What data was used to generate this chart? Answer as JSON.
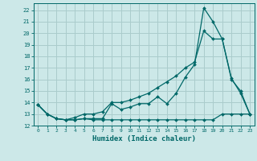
{
  "title": "",
  "xlabel": "Humidex (Indice chaleur)",
  "ylabel": "",
  "bg_color": "#cce8e8",
  "line_color": "#006868",
  "grid_color": "#aacccc",
  "xlim": [
    -0.5,
    23.5
  ],
  "ylim": [
    12,
    22.6
  ],
  "yticks": [
    12,
    13,
    14,
    15,
    16,
    17,
    18,
    19,
    20,
    21,
    22
  ],
  "xticks": [
    0,
    1,
    2,
    3,
    4,
    5,
    6,
    7,
    8,
    9,
    10,
    11,
    12,
    13,
    14,
    15,
    16,
    17,
    18,
    19,
    20,
    21,
    22,
    23
  ],
  "series1": [
    13.8,
    13.0,
    12.6,
    12.5,
    12.5,
    12.6,
    12.5,
    12.5,
    12.5,
    12.5,
    12.5,
    12.5,
    12.5,
    12.5,
    12.5,
    12.5,
    12.5,
    12.5,
    12.5,
    12.5,
    13.0,
    13.0,
    13.0,
    13.0
  ],
  "series2": [
    13.8,
    13.0,
    12.6,
    12.5,
    12.5,
    12.6,
    12.6,
    12.6,
    13.9,
    13.4,
    13.6,
    13.9,
    13.9,
    14.5,
    13.9,
    14.8,
    16.2,
    17.3,
    22.2,
    21.0,
    19.5,
    16.0,
    15.0,
    13.0
  ],
  "series3": [
    13.8,
    13.0,
    12.6,
    12.5,
    12.7,
    13.0,
    13.0,
    13.2,
    14.0,
    14.0,
    14.2,
    14.5,
    14.8,
    15.3,
    15.8,
    16.3,
    17.0,
    17.5,
    20.2,
    19.5,
    19.5,
    16.1,
    14.8,
    13.0
  ]
}
